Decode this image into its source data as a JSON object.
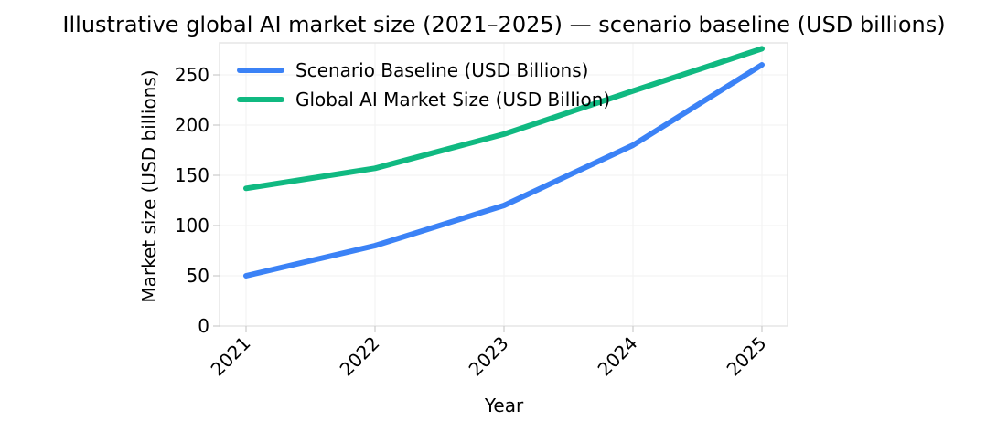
{
  "chart_data": {
    "type": "line",
    "title": "Illustrative global AI market size (2021–2025) — scenario baseline (USD billions)",
    "xlabel": "Year",
    "ylabel": "Market size (USD billions)",
    "categories": [
      "2021",
      "2022",
      "2023",
      "2024",
      "2025"
    ],
    "ylim": [
      0,
      280
    ],
    "yticks": [
      0,
      50,
      100,
      150,
      200,
      250
    ],
    "grid": true,
    "legend_position": "top-left",
    "series": [
      {
        "name": "Scenario Baseline (USD Billions)",
        "color": "#3b82f6",
        "values": [
          50,
          80,
          120,
          180,
          260
        ]
      },
      {
        "name": "Global AI Market Size (USD Billion)",
        "color": "#10b981",
        "values": [
          137,
          157,
          191,
          234,
          276
        ]
      }
    ]
  }
}
